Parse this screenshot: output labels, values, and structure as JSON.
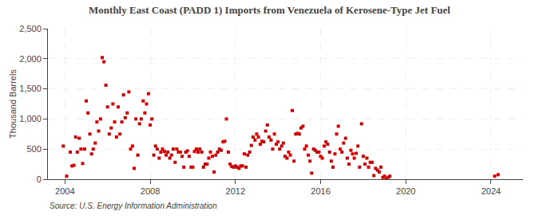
{
  "chart_data": {
    "type": "scatter",
    "title": "Monthly East Coast (PADD 1) Imports from Venezuela of Kerosene-Type Jet Fuel",
    "ylabel": "Thousand Barrels",
    "annotations": [
      "Source: U.S. Energy Information Administration"
    ],
    "color": "#cc0000",
    "marker": "square",
    "grid": true,
    "xlim": [
      2003.2,
      2025.5
    ],
    "xticks": [
      2004,
      2008,
      2012,
      2016,
      2020,
      2024
    ],
    "ylim": [
      0,
      2500
    ],
    "yticks": [
      0,
      500,
      {
        "value": 1000,
        "label": "1,000"
      },
      {
        "value": 1500,
        "label": "1,500"
      },
      {
        "value": 2000,
        "label": "2,000"
      },
      {
        "value": 2500,
        "label": "2,500"
      }
    ],
    "x": [
      2003.92,
      2004.08,
      2004.25,
      2004.33,
      2004.42,
      2004.5,
      2004.58,
      2004.67,
      2004.75,
      2004.83,
      2004.92,
      2005.0,
      2005.08,
      2005.17,
      2005.25,
      2005.33,
      2005.42,
      2005.5,
      2005.58,
      2005.67,
      2005.75,
      2005.83,
      2005.92,
      2006.0,
      2006.08,
      2006.17,
      2006.25,
      2006.33,
      2006.42,
      2006.5,
      2006.58,
      2006.67,
      2006.75,
      2006.83,
      2006.92,
      2007.0,
      2007.08,
      2007.17,
      2007.25,
      2007.33,
      2007.42,
      2007.5,
      2007.58,
      2007.67,
      2007.75,
      2007.83,
      2007.92,
      2008.0,
      2008.08,
      2008.17,
      2008.25,
      2008.33,
      2008.42,
      2008.5,
      2008.58,
      2008.67,
      2008.75,
      2008.83,
      2008.92,
      2009.0,
      2009.08,
      2009.17,
      2009.25,
      2009.33,
      2009.42,
      2009.5,
      2009.58,
      2009.67,
      2009.75,
      2009.83,
      2009.92,
      2010.0,
      2010.08,
      2010.17,
      2010.25,
      2010.33,
      2010.42,
      2010.5,
      2010.58,
      2010.67,
      2010.75,
      2010.83,
      2010.92,
      2011.0,
      2011.08,
      2011.17,
      2011.25,
      2011.33,
      2011.42,
      2011.5,
      2011.58,
      2011.67,
      2011.75,
      2011.83,
      2011.92,
      2012.0,
      2012.08,
      2012.17,
      2012.25,
      2012.33,
      2012.42,
      2012.5,
      2012.58,
      2012.67,
      2012.75,
      2012.83,
      2012.92,
      2013.0,
      2013.08,
      2013.17,
      2013.25,
      2013.33,
      2013.42,
      2013.5,
      2013.58,
      2013.67,
      2013.75,
      2013.83,
      2013.92,
      2014.0,
      2014.08,
      2014.17,
      2014.25,
      2014.33,
      2014.42,
      2014.5,
      2014.58,
      2014.67,
      2014.75,
      2014.83,
      2014.92,
      2015.0,
      2015.08,
      2015.17,
      2015.25,
      2015.33,
      2015.42,
      2015.5,
      2015.58,
      2015.67,
      2015.75,
      2015.83,
      2015.92,
      2016.0,
      2016.08,
      2016.17,
      2016.25,
      2016.33,
      2016.42,
      2016.5,
      2016.58,
      2016.67,
      2016.75,
      2016.83,
      2016.92,
      2017.0,
      2017.08,
      2017.17,
      2017.25,
      2017.33,
      2017.42,
      2017.5,
      2017.58,
      2017.67,
      2017.75,
      2017.83,
      2017.92,
      2018.0,
      2018.08,
      2018.17,
      2018.25,
      2018.33,
      2018.42,
      2018.5,
      2018.58,
      2018.67,
      2018.75,
      2018.83,
      2018.92,
      2019.0,
      2019.08,
      2019.17,
      2019.25,
      2024.17,
      2024.33
    ],
    "values": [
      550,
      50,
      450,
      220,
      230,
      700,
      450,
      680,
      500,
      260,
      500,
      1300,
      1100,
      750,
      420,
      500,
      600,
      950,
      800,
      1000,
      2020,
      1950,
      1560,
      1200,
      750,
      850,
      1250,
      950,
      700,
      1200,
      750,
      950,
      1400,
      1020,
      1100,
      1450,
      500,
      550,
      180,
      1000,
      400,
      920,
      1000,
      1300,
      1100,
      1250,
      1420,
      900,
      1000,
      400,
      550,
      500,
      350,
      450,
      500,
      460,
      400,
      450,
      350,
      400,
      500,
      280,
      500,
      450,
      450,
      380,
      200,
      450,
      470,
      380,
      200,
      200,
      460,
      500,
      450,
      500,
      450,
      200,
      250,
      250,
      350,
      450,
      380,
      120,
      400,
      450,
      500,
      480,
      620,
      630,
      1000,
      450,
      250,
      210,
      200,
      220,
      200,
      180,
      220,
      220,
      420,
      200,
      400,
      450,
      560,
      700,
      650,
      750,
      700,
      580,
      630,
      620,
      800,
      900,
      700,
      650,
      500,
      750,
      580,
      620,
      500,
      550,
      600,
      380,
      350,
      450,
      400,
      1140,
      300,
      750,
      760,
      750,
      850,
      880,
      500,
      550,
      400,
      300,
      100,
      500,
      480,
      450,
      450,
      380,
      350,
      550,
      620,
      580,
      450,
      300,
      200,
      420,
      750,
      880,
      500,
      450,
      600,
      680,
      350,
      250,
      480,
      420,
      350,
      430,
      550,
      200,
      920,
      380,
      250,
      350,
      200,
      280,
      280,
      60,
      180,
      150,
      120,
      200,
      30,
      50,
      0,
      30,
      50,
      50,
      75
    ]
  }
}
